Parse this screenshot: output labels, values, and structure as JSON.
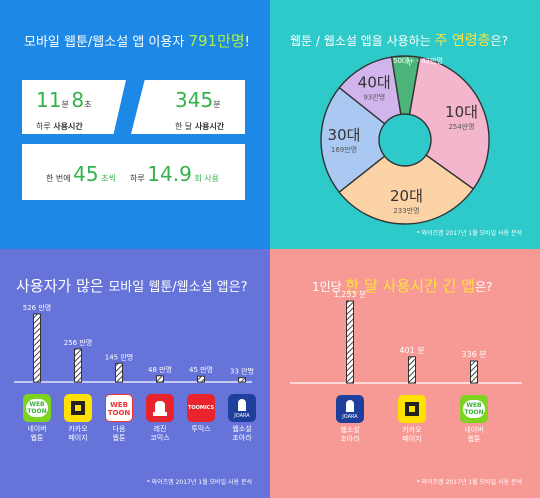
{
  "panel1": {
    "title_pre": "모바일 웹툰/웹소설 앱 이용자 ",
    "title_num": "791만명",
    "title_post": "!",
    "card1_num1": "11",
    "card1_unit1": "분 ",
    "card1_num2": "8",
    "card1_unit2": "초",
    "card1_label_pre": "하루 ",
    "card1_label_bold": "사용시간",
    "card2_num": "345",
    "card2_unit": "분",
    "card2_label_pre": "한 달 ",
    "card2_label_bold": "사용시간",
    "card3_pre1": "한 번에  ",
    "card3_num1": "45",
    "card3_unit1": " 초씩",
    "card3_pre2": "하루  ",
    "card3_num2": "14.9",
    "card3_unit2": " 회 사용"
  },
  "panel2": {
    "title_pre": "웹툰 / 웹소설 앱을 사용하는 ",
    "title_hl": "주 연령층",
    "title_post": "은?",
    "note": "* 와이즈앱 2017년 1월 모바일 사용 분석"
  },
  "panel3": {
    "title_pre": "사용자가 많은 ",
    "title_post": "모바일 웹툰/웹소설 앱은?",
    "note": "* 와이즈앱 2017년 1월 모바일 사용 분석"
  },
  "panel4": {
    "title_pre": "1인당 ",
    "title_hl": "한 달 사용시간 긴 앱",
    "title_post": "은?",
    "note": "* 와이즈앱 2017년 1월 모바일 사용 분석"
  },
  "colors": {
    "blue": "#1d88e5",
    "teal": "#2ec9c9",
    "indigo": "#6673d9",
    "pink": "#f79a96",
    "green": "#aef03c",
    "yellow": "#ffe23b",
    "pie_10s": "#f4b6cc",
    "pie_20s": "#fcd3a6",
    "pie_30s": "#a9c9f3",
    "pie_40s": "#d2b4ec",
    "pie_50s": "#4db57a"
  },
  "chart_data": [
    {
      "type": "pie",
      "categories": [
        "10대",
        "20대",
        "30대",
        "40대",
        "50대+"
      ],
      "values": [
        254,
        233,
        169,
        93,
        42
      ],
      "value_labels": [
        "254만명",
        "233만명",
        "169만명",
        "93만명",
        "42만명"
      ]
    },
    {
      "type": "bar",
      "categories": [
        "네이버 웹툰",
        "카카오 페이지",
        "다음 웹툰",
        "레진 코믹스",
        "투믹스",
        "웹소설 조아라"
      ],
      "values": [
        526,
        256,
        145,
        48,
        45,
        33
      ],
      "value_labels": [
        "526 만명",
        "256 만명",
        "145 만명",
        "48 만명",
        "45 만명",
        "33 만명"
      ],
      "icons": [
        "naver-webtoon-icon",
        "kakao-page-icon",
        "daum-webtoon-icon",
        "lezhin-comics-icon",
        "toomics-icon",
        "joara-icon"
      ]
    },
    {
      "type": "bar",
      "categories": [
        "웹소설 조아라",
        "카카오 페이지",
        "네이버 웹툰"
      ],
      "values": [
        1253,
        401,
        336
      ],
      "value_labels": [
        "1,253 분",
        "401 분",
        "336 분"
      ],
      "icons": [
        "joara-icon",
        "kakao-page-icon",
        "naver-webtoon-icon"
      ]
    }
  ]
}
